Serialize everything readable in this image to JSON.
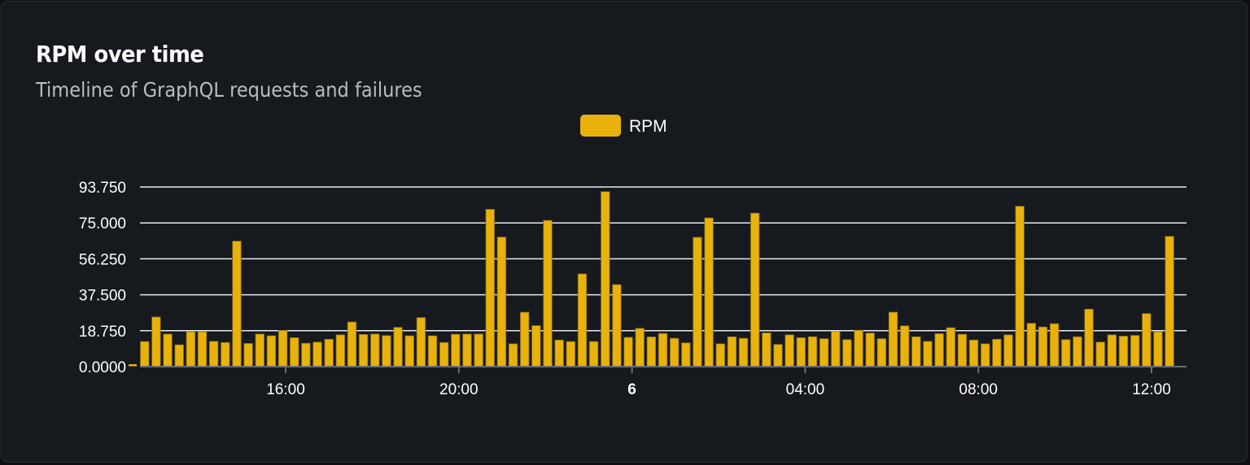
{
  "card": {
    "title": "RPM over time",
    "subtitle": "Timeline of GraphQL requests and failures"
  },
  "chart_data": {
    "type": "bar",
    "title": "RPM over time",
    "subtitle": "Timeline of GraphQL requests and failures",
    "legend": {
      "position": "top-center",
      "entries": [
        "RPM"
      ]
    },
    "series": [
      {
        "name": "RPM",
        "color": "#e8b20b",
        "values": [
          13.1,
          25.9,
          17.0,
          11.4,
          18.2,
          18.2,
          13.2,
          12.6,
          65.5,
          12.1,
          17.0,
          16.1,
          18.9,
          15.1,
          12.2,
          12.8,
          14.3,
          16.6,
          23.3,
          16.8,
          17.0,
          16.2,
          20.5,
          16.1,
          25.6,
          16.1,
          12.6,
          16.9,
          17.0,
          17.0,
          82.1,
          67.6,
          11.9,
          28.4,
          21.4,
          76.3,
          13.9,
          13.1,
          48.4,
          13.1,
          91.3,
          42.8,
          15.3,
          20.0,
          15.5,
          17.3,
          14.8,
          12.4,
          67.5,
          77.6,
          11.9,
          15.6,
          14.8,
          80.1,
          17.6,
          11.6,
          16.6,
          15.1,
          15.6,
          14.6,
          18.3,
          14.1,
          19.0,
          17.5,
          14.6,
          28.4,
          21.3,
          15.6,
          13.2,
          17.2,
          20.3,
          16.9,
          13.9,
          11.9,
          14.3,
          16.6,
          83.7,
          22.6,
          20.7,
          22.4,
          14.1,
          15.6,
          30.0,
          12.8,
          16.6,
          15.9,
          16.3,
          27.7,
          18.2,
          68.0
        ]
      }
    ],
    "y_ticks": [
      "0.0000",
      "18.750",
      "37.500",
      "56.250",
      "75.000",
      "93.750"
    ],
    "ylim": [
      0,
      93.75
    ],
    "x_ticks": [
      {
        "label": "16:00",
        "bold": false
      },
      {
        "label": "20:00",
        "bold": false
      },
      {
        "label": "6",
        "bold": true
      },
      {
        "label": "04:00",
        "bold": false
      },
      {
        "label": "08:00",
        "bold": false
      },
      {
        "label": "12:00",
        "bold": false
      }
    ],
    "grid": "horizontal",
    "colors": {
      "bar": "#e8b20b",
      "grid": "#e6e9f0",
      "axis": "#6b6e75",
      "text": "#ffffff"
    }
  }
}
